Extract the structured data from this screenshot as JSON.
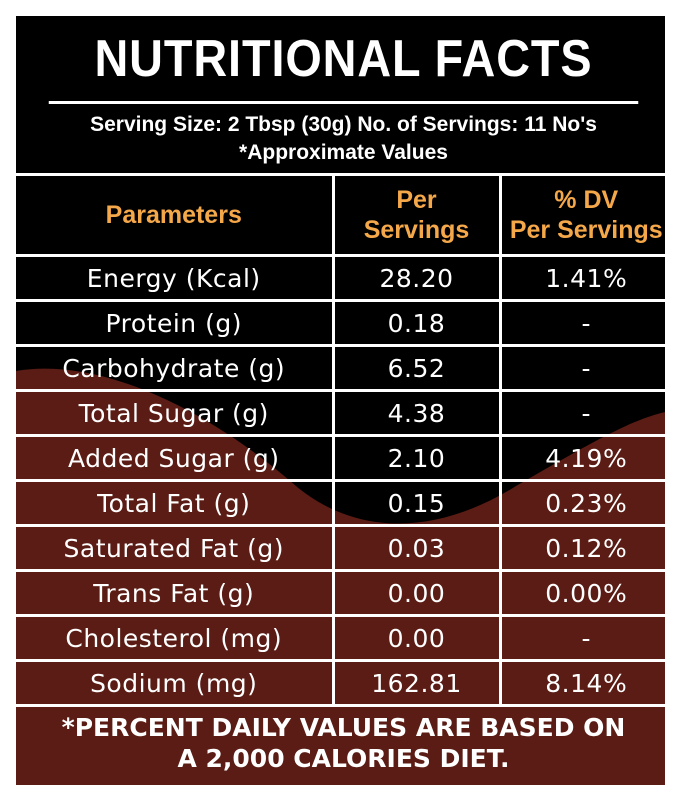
{
  "title": "NUTRITIONAL FACTS",
  "serving": {
    "line1": "Serving Size: 2 Tbsp (30g) No. of Servings: 11 No's",
    "line2": "*Approximate Values"
  },
  "headers": {
    "parameters": "Parameters",
    "per_servings_line1": "Per",
    "per_servings_line2": "Servings",
    "dv_line1": "% DV",
    "dv_line2": "Per Servings"
  },
  "rows": [
    {
      "parameter": "Energy (Kcal)",
      "per_serving": "28.20",
      "dv": "1.41%"
    },
    {
      "parameter": "Protein (g)",
      "per_serving": "0.18",
      "dv": "-"
    },
    {
      "parameter": "Carbohydrate (g)",
      "per_serving": "6.52",
      "dv": "-"
    },
    {
      "parameter": "Total Sugar (g)",
      "per_serving": "4.38",
      "dv": "-"
    },
    {
      "parameter": "Added Sugar (g)",
      "per_serving": "2.10",
      "dv": "4.19%"
    },
    {
      "parameter": "Total Fat (g)",
      "per_serving": "0.15",
      "dv": "0.23%"
    },
    {
      "parameter": "Saturated Fat (g)",
      "per_serving": "0.03",
      "dv": "0.12%"
    },
    {
      "parameter": "Trans Fat (g)",
      "per_serving": "0.00",
      "dv": "0.00%"
    },
    {
      "parameter": "Cholesterol (mg)",
      "per_serving": "0.00",
      "dv": "-"
    },
    {
      "parameter": "Sodium (mg)",
      "per_serving": "162.81",
      "dv": "8.14%"
    }
  ],
  "footer": {
    "line1": "*PERCENT DAILY VALUES ARE BASED ON",
    "line2": "A 2,000 CALORIES DIET."
  },
  "colors": {
    "background": "#000000",
    "wave": "#5a1c14",
    "header_text": "#f5a84a",
    "text": "#ffffff"
  }
}
